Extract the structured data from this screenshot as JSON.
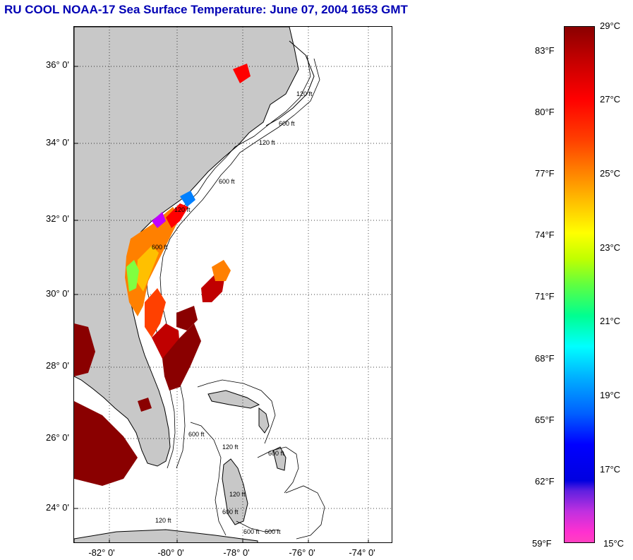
{
  "title": "RU COOL  NOAA-17  Sea Surface Temperature:  June 07, 2004 1653 GMT",
  "map": {
    "lat_labels": [
      "36° 0'",
      "34° 0'",
      "32° 0'",
      "30° 0'",
      "28° 0'",
      "26° 0'",
      "24° 0'"
    ],
    "lon_labels": [
      "-82° 0'",
      "-80° 0'",
      "-78° 0'",
      "-76° 0'",
      "-74° 0'"
    ],
    "contour_labels": [
      "120 ft",
      "600 ft",
      "120 ft",
      "600 ft",
      "120 ft",
      "600 ft",
      "600 ft",
      "120 ft",
      "600 ft",
      "120 ft",
      "600 ft",
      "600 ft",
      "120 ft",
      "600 ft"
    ],
    "land_color": "#c8c8c8",
    "sea_color": "#ffffff"
  },
  "colorbar": {
    "fahrenheit_labels": [
      "83°F",
      "80°F",
      "77°F",
      "74°F",
      "71°F",
      "68°F",
      "65°F",
      "62°F",
      "59°F"
    ],
    "celsius_labels": [
      "29°C",
      "27°C",
      "25°C",
      "23°C",
      "21°C",
      "19°C",
      "17°C",
      "15°C"
    ],
    "min_c": 15,
    "max_c": 29
  }
}
